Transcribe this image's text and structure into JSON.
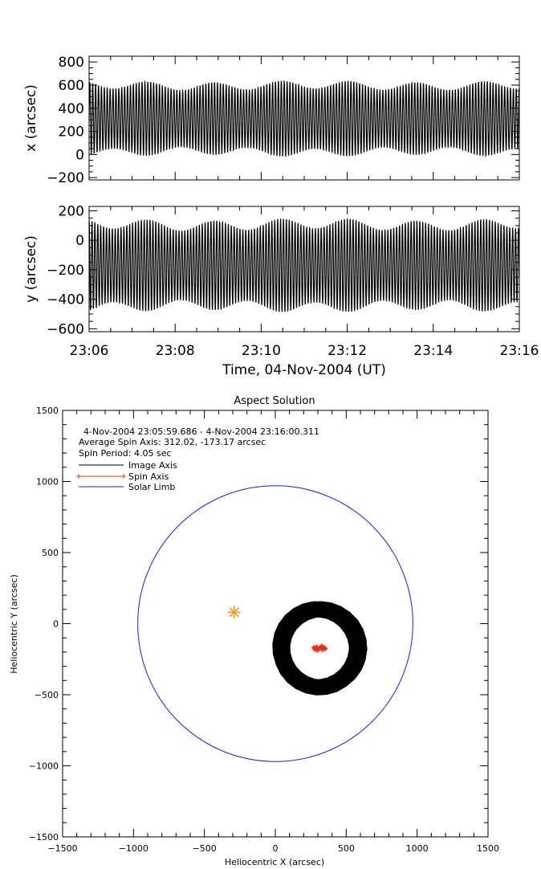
{
  "chart_data": [
    {
      "type": "line",
      "ylabel": "x (arcsec)",
      "ylim": [
        -220,
        850
      ],
      "yticks": [
        -200,
        0,
        200,
        400,
        600,
        800
      ],
      "xlim": [
        "23:06",
        "23:16"
      ],
      "series": [
        {
          "color": "#000000",
          "center": 310,
          "amplitude_min": 245,
          "amplitude_max": 330,
          "spin_period_sec": 4.05
        }
      ]
    },
    {
      "type": "line",
      "ylabel": "y (arcsec)",
      "xlabel": "Time, 04-Nov-2004 (UT)",
      "ylim": [
        -620,
        230
      ],
      "yticks": [
        -600,
        -400,
        -200,
        0,
        200
      ],
      "xticks": [
        "23:06",
        "23:08",
        "23:10",
        "23:12",
        "23:14",
        "23:16"
      ],
      "series": [
        {
          "color": "#000000",
          "center": -170,
          "amplitude_min": 235,
          "amplitude_max": 320,
          "spin_period_sec": 4.05
        }
      ]
    },
    {
      "type": "scatter",
      "title": "Aspect Solution",
      "xlabel": "Heliocentric X (arcsec)",
      "ylabel": "Heliocentric Y (arcsec)",
      "xlim": [
        -1500,
        1500
      ],
      "ylim": [
        -1500,
        1500
      ],
      "ticks": [
        -1500,
        -1000,
        -500,
        0,
        500,
        1000,
        1500
      ],
      "annotations": [
        "4-Nov-2004 23:05:59.686 -  4-Nov-2004 23:16:00.311",
        "Average Spin Axis: 312.02, -173.17 arcsec",
        "Spin Period: 4.05 sec"
      ],
      "legend": [
        {
          "name": "Image Axis",
          "color": "#000000"
        },
        {
          "name": "Spin Axis",
          "color": "#e8321a"
        },
        {
          "name": "Solar Limb",
          "color": "#1a1aff"
        }
      ],
      "solar_limb_radius": 970,
      "spin_axis": [
        312.02,
        -173.17
      ],
      "star_marker": [
        -290,
        80
      ],
      "star_color": "#f2981e",
      "image_axis_radius_min": 230,
      "image_axis_radius_max": 320
    }
  ]
}
